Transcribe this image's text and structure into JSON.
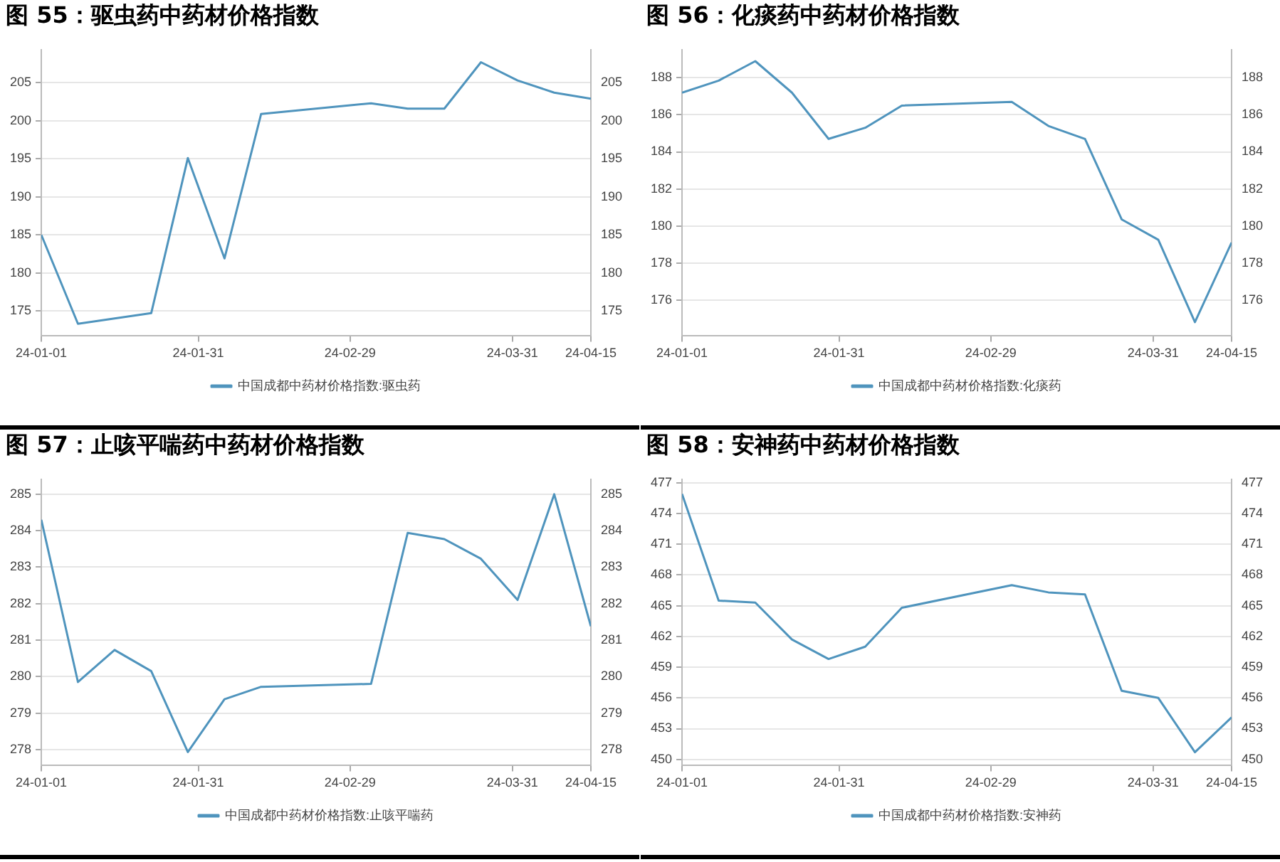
{
  "chart_data": [
    {
      "type": "line",
      "title": "图 55：驱虫药中药材价格指数",
      "x": [
        "--01-01",
        "--01-08",
        "--01-22",
        "--01-29",
        "--02-05",
        "--02-12",
        "--03-04",
        "--03-11",
        "--03-18",
        "--03-25",
        "--04-01",
        "--04-08",
        "--04-15"
      ],
      "series": [
        {
          "name": "中国成都中药材价格指数:驱虫药",
          "color": "#4f94bd",
          "values": [
            185.0,
            173.3,
            174.7,
            195.1,
            181.9,
            200.9,
            202.3,
            201.6,
            201.6,
            207.7,
            205.3,
            203.7,
            202.9
          ]
        }
      ],
      "xlim": [
        "--01-01",
        "--04-15"
      ],
      "xticks": [
        {
          "value": "--01-01",
          "label": "24-01-01"
        },
        {
          "value": "--01-31",
          "label": "24-01-31"
        },
        {
          "value": "--02-29",
          "label": "24-02-29"
        },
        {
          "value": "--03-31",
          "label": "24-03-31"
        },
        {
          "value": "--04-15",
          "label": "24-04-15"
        }
      ],
      "ylim": [
        171.7,
        209.3
      ],
      "yticks": [
        175,
        180,
        185,
        190,
        195,
        200,
        205
      ],
      "y2lim": [
        171.7,
        209.3
      ],
      "y2ticks": [
        175,
        180,
        185,
        190,
        195,
        200,
        205
      ],
      "grid": "y",
      "legend": "bottom",
      "marker": "none"
    },
    {
      "type": "line",
      "title": "图 56：化痰药中药材价格指数",
      "x": [
        "--01-01",
        "--01-08",
        "--01-15",
        "--01-22",
        "--01-29",
        "--02-05",
        "--02-12",
        "--03-04",
        "--03-11",
        "--03-18",
        "--03-25",
        "--04-01",
        "--04-08",
        "--04-15"
      ],
      "series": [
        {
          "name": "中国成都中药材价格指数:化痰药",
          "color": "#4f94bd",
          "values": [
            187.2,
            187.85,
            188.9,
            187.2,
            184.7,
            185.3,
            186.5,
            186.7,
            185.4,
            184.7,
            180.35,
            179.25,
            174.8,
            179.1
          ]
        }
      ],
      "xlim": [
        "--01-01",
        "--04-15"
      ],
      "xticks": [
        {
          "value": "--01-01",
          "label": "24-01-01"
        },
        {
          "value": "--01-31",
          "label": "24-01-31"
        },
        {
          "value": "--02-29",
          "label": "24-02-29"
        },
        {
          "value": "--03-31",
          "label": "24-03-31"
        },
        {
          "value": "--04-15",
          "label": "24-04-15"
        }
      ],
      "ylim": [
        174.05,
        189.5
      ],
      "yticks": [
        176,
        178,
        180,
        182,
        184,
        186,
        188
      ],
      "y2lim": [
        174.05,
        189.5
      ],
      "y2ticks": [
        176,
        178,
        180,
        182,
        184,
        186,
        188
      ],
      "grid": "y",
      "legend": "bottom",
      "marker": "none"
    },
    {
      "type": "line",
      "title": "图 57：止咳平喘药中药材价格指数",
      "x": [
        "--01-01",
        "--01-08",
        "--01-15",
        "--01-22",
        "--01-29",
        "--02-05",
        "--02-12",
        "--03-04",
        "--03-11",
        "--03-18",
        "--03-25",
        "--04-01",
        "--04-08",
        "--04-15"
      ],
      "series": [
        {
          "name": "中国成都中药材价格指数:止咳平喘药",
          "color": "#4f94bd",
          "values": [
            284.3,
            279.85,
            280.73,
            280.15,
            277.93,
            279.38,
            279.72,
            279.8,
            283.94,
            283.77,
            283.23,
            282.1,
            285.0,
            281.38
          ]
        }
      ],
      "xlim": [
        "--01-01",
        "--04-15"
      ],
      "xticks": [
        {
          "value": "--01-01",
          "label": "24-01-01"
        },
        {
          "value": "--01-31",
          "label": "24-01-31"
        },
        {
          "value": "--02-29",
          "label": "24-02-29"
        },
        {
          "value": "--03-31",
          "label": "24-03-31"
        },
        {
          "value": "--04-15",
          "label": "24-04-15"
        }
      ],
      "ylim": [
        277.56,
        285.4
      ],
      "yticks": [
        278,
        279,
        280,
        281,
        282,
        283,
        284,
        285
      ],
      "y2lim": [
        277.56,
        285.4
      ],
      "y2ticks": [
        278,
        279,
        280,
        281,
        282,
        283,
        284,
        285
      ],
      "grid": "y",
      "legend": "bottom",
      "marker": "none"
    },
    {
      "type": "line",
      "title": "图 58：安神药中药材价格指数",
      "x": [
        "--01-01",
        "--01-08",
        "--01-15",
        "--01-22",
        "--01-29",
        "--02-05",
        "--02-12",
        "--03-04",
        "--03-11",
        "--03-18",
        "--03-25",
        "--04-01",
        "--04-08",
        "--04-15"
      ],
      "series": [
        {
          "name": "中国成都中药材价格指数:安神药",
          "color": "#4f94bd",
          "values": [
            475.9,
            465.5,
            465.3,
            461.7,
            459.8,
            461.0,
            464.8,
            467.0,
            466.3,
            466.1,
            456.7,
            456.0,
            450.7,
            454.1
          ]
        }
      ],
      "xlim": [
        "--01-01",
        "--04-15"
      ],
      "xticks": [
        {
          "value": "--01-01",
          "label": "24-01-01"
        },
        {
          "value": "--01-31",
          "label": "24-01-31"
        },
        {
          "value": "--02-29",
          "label": "24-02-29"
        },
        {
          "value": "--03-31",
          "label": "24-03-31"
        },
        {
          "value": "--04-15",
          "label": "24-04-15"
        }
      ],
      "ylim": [
        449.4,
        477.3
      ],
      "yticks": [
        450,
        453,
        456,
        459,
        462,
        465,
        468,
        471,
        474,
        477
      ],
      "y2lim": [
        449.4,
        477.3
      ],
      "y2ticks": [
        450,
        453,
        456,
        459,
        462,
        465,
        468,
        471,
        474,
        477
      ],
      "grid": "y",
      "legend": "bottom",
      "marker": "none"
    }
  ]
}
